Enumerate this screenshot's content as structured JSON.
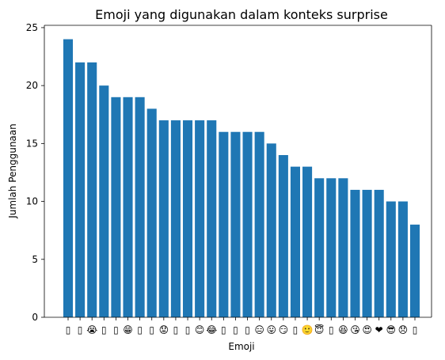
{
  "chart_data": {
    "type": "bar",
    "title": "Emoji yang digunakan dalam konteks surprise",
    "xlabel": "Emoji",
    "ylabel": "Jumlah Penggunaan",
    "ylim": [
      0,
      25.2
    ],
    "yticks": [
      0,
      5,
      10,
      15,
      20,
      25
    ],
    "bar_color": "#1f77b4",
    "categories": [
      "▯",
      "▯",
      "😭",
      "▯",
      "▯",
      "😁",
      "▯",
      "▯",
      "😟",
      "▯",
      "▯",
      "😊",
      "😂",
      "▯",
      "▯",
      "▯",
      "😑",
      "😛",
      "😏",
      "▯",
      "🙂",
      "😇",
      "▯",
      "😆",
      "😘",
      "😍",
      "❤",
      "😎",
      "😞",
      "▯"
    ],
    "values": [
      24,
      22,
      22,
      20,
      19,
      19,
      19,
      18,
      17,
      17,
      17,
      17,
      17,
      16,
      16,
      16,
      16,
      15,
      14,
      13,
      13,
      12,
      12,
      12,
      11,
      11,
      11,
      10,
      10,
      8
    ]
  }
}
